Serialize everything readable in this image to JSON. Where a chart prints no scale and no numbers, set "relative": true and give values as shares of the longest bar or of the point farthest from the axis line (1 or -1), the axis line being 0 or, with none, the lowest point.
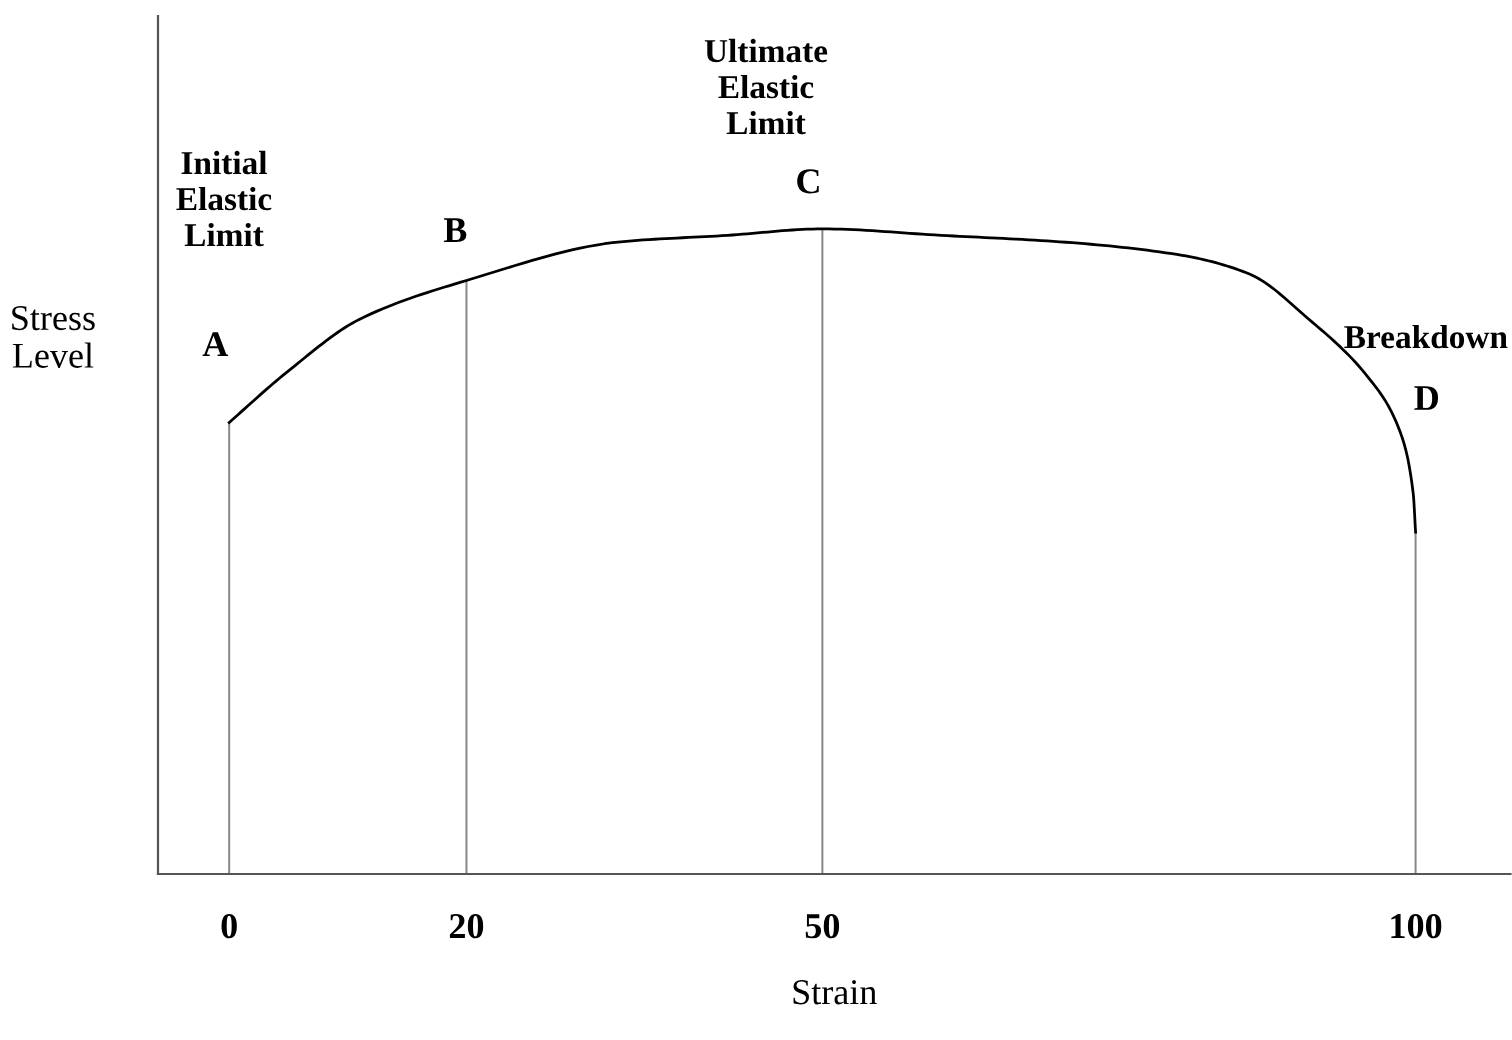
{
  "chart_data": {
    "type": "line",
    "xlabel": "Strain",
    "ylabel": "Stress\nLevel",
    "relative": true,
    "xlim": [
      -6,
      108
    ],
    "xticks": [
      0,
      20,
      50,
      100
    ],
    "grid": false,
    "legend": false,
    "marker": "none",
    "line_style": "solid",
    "series": [
      {
        "color": "#000000",
        "x": [
          0,
          5,
          11,
          20,
          33,
          42,
          50,
          60,
          70,
          80,
          86,
          91,
          96,
          98.6,
          99.8,
          100
        ],
        "values": [
          0.7,
          0.78,
          0.86,
          0.92,
          0.98,
          0.99,
          1.0,
          0.99,
          0.98,
          0.96,
          0.93,
          0.86,
          0.77,
          0.69,
          0.59,
          0.53
        ]
      },
      {
        "type": "bar",
        "color": "#888888",
        "x": [
          0,
          20,
          50,
          100
        ],
        "values": [
          0.7,
          0.92,
          1.0,
          0.53
        ]
      }
    ],
    "annotations": [
      {
        "text": "A",
        "x": 0,
        "y": 0.7
      },
      {
        "text": "B",
        "x": 20,
        "y": 0.92
      },
      {
        "text": "C",
        "x": 50,
        "y": 1.0
      },
      {
        "text": "D",
        "x": 98.6,
        "y": 0.69
      },
      "Initial\nElastic\nLimit",
      "Ultimate\nElastic\nLimit",
      "Breakdown"
    ]
  }
}
